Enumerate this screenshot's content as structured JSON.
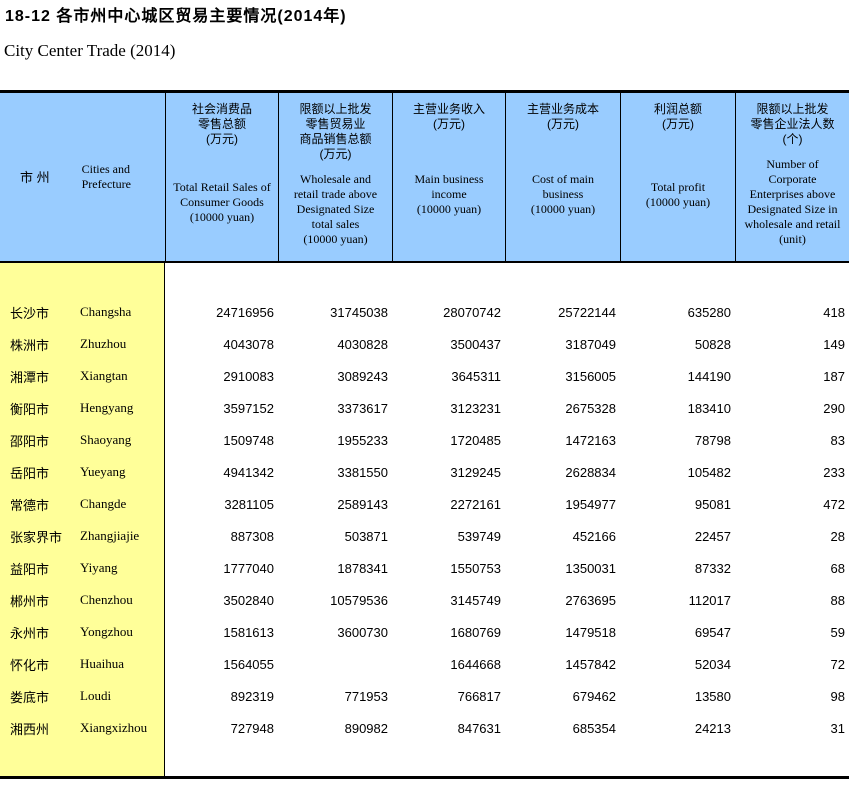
{
  "page": {
    "title_cn": "18-12 各市州中心城区贸易主要情况(2014年)",
    "title_en": "City Center Trade (2014)"
  },
  "colors": {
    "header_bg": "#99CCFF",
    "name_column_bg": "#FFFF99",
    "border": "#000000",
    "text": "#000000"
  },
  "table": {
    "columns": [
      {
        "cn": "市 州",
        "en": "Cities and\nPrefecture"
      },
      {
        "cn": "社会消费品\n零售总额\n(万元)",
        "en": "Total Retail Sales of\nConsumer Goods\n(10000 yuan)"
      },
      {
        "cn": "限额以上批发\n零售贸易业\n商品销售总额\n(万元)",
        "en": "Wholesale and\nretail trade above\nDesignated Size\ntotal sales\n(10000 yuan)"
      },
      {
        "cn": "主营业务收入\n(万元)",
        "en": "Main business\nincome\n(10000 yuan)"
      },
      {
        "cn": "主营业务成本\n(万元)",
        "en": "Cost of main\nbusiness\n(10000 yuan)"
      },
      {
        "cn": "利润总额\n(万元)",
        "en": "Total profit\n(10000 yuan)"
      },
      {
        "cn": "限额以上批发\n零售企业法人数\n(个)",
        "en": "Number of\nCorporate\nEnterprises above\nDesignated Size in\nwholesale and retail\n(unit)"
      }
    ],
    "rows": [
      {
        "cn": "长沙市",
        "en": "Changsha",
        "values": [
          "24716956",
          "31745038",
          "28070742",
          "25722144",
          "635280",
          "418"
        ]
      },
      {
        "cn": "株洲市",
        "en": "Zhuzhou",
        "values": [
          "4043078",
          "4030828",
          "3500437",
          "3187049",
          "50828",
          "149"
        ]
      },
      {
        "cn": "湘潭市",
        "en": "Xiangtan",
        "values": [
          "2910083",
          "3089243",
          "3645311",
          "3156005",
          "144190",
          "187"
        ]
      },
      {
        "cn": "衡阳市",
        "en": "Hengyang",
        "values": [
          "3597152",
          "3373617",
          "3123231",
          "2675328",
          "183410",
          "290"
        ]
      },
      {
        "cn": "邵阳市",
        "en": "Shaoyang",
        "values": [
          "1509748",
          "1955233",
          "1720485",
          "1472163",
          "78798",
          "83"
        ]
      },
      {
        "cn": "岳阳市",
        "en": "Yueyang",
        "values": [
          "4941342",
          "3381550",
          "3129245",
          "2628834",
          "105482",
          "233"
        ]
      },
      {
        "cn": "常德市",
        "en": "Changde",
        "values": [
          "3281105",
          "2589143",
          "2272161",
          "1954977",
          "95081",
          "472"
        ]
      },
      {
        "cn": "张家界市",
        "en": "Zhangjiajie",
        "values": [
          "887308",
          "503871",
          "539749",
          "452166",
          "22457",
          "28"
        ]
      },
      {
        "cn": "益阳市",
        "en": "Yiyang",
        "values": [
          "1777040",
          "1878341",
          "1550753",
          "1350031",
          "87332",
          "68"
        ]
      },
      {
        "cn": "郴州市",
        "en": "Chenzhou",
        "values": [
          "3502840",
          "10579536",
          "3145749",
          "2763695",
          "112017",
          "88"
        ]
      },
      {
        "cn": "永州市",
        "en": "Yongzhou",
        "values": [
          "1581613",
          "3600730",
          "1680769",
          "1479518",
          "69547",
          "59"
        ]
      },
      {
        "cn": "怀化市",
        "en": "Huaihua",
        "values": [
          "1564055",
          "",
          "1644668",
          "1457842",
          "52034",
          "72"
        ]
      },
      {
        "cn": "娄底市",
        "en": "Loudi",
        "values": [
          "892319",
          "771953",
          "766817",
          "679462",
          "13580",
          "98"
        ]
      },
      {
        "cn": "湘西州",
        "en": "Xiangxizhou",
        "values": [
          "727948",
          "890982",
          "847631",
          "685354",
          "24213",
          "31"
        ]
      }
    ]
  }
}
